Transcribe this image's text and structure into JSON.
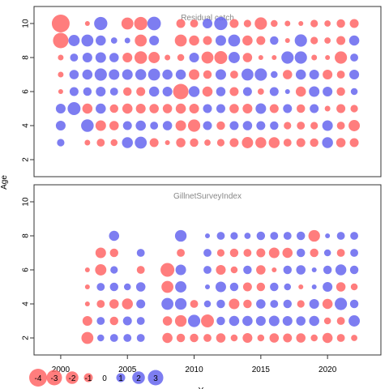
{
  "chart_data": [
    {
      "type": "bubble",
      "title": "Residual catch",
      "xlim": [
        1998,
        2024
      ],
      "ylim": [
        1,
        11
      ],
      "yticks": [
        2,
        4,
        6,
        8,
        10
      ],
      "positive_color": "#6666ee",
      "negative_color": "#ff6666",
      "x": [
        2000,
        2001,
        2002,
        2003,
        2004,
        2005,
        2006,
        2007,
        2008,
        2009,
        2010,
        2011,
        2012,
        2013,
        2014,
        2015,
        2016,
        2017,
        2018,
        2019,
        2020,
        2021,
        2022
      ],
      "ages": [
        3,
        4,
        5,
        6,
        7,
        8,
        9,
        10
      ],
      "residuals": {
        "10": [
          -4,
          0,
          -0.3,
          2.2,
          0,
          -1.8,
          -2.2,
          2.3,
          0,
          -1,
          -0.8,
          1.2,
          2.2,
          -1,
          -0.7,
          -1.9,
          -0.6,
          -0.4,
          -0.3,
          -0.7,
          -0.5,
          -0.9,
          -1
        ],
        "9": [
          -3,
          1.6,
          1.8,
          1.3,
          0.5,
          0.4,
          -1.8,
          1.2,
          0,
          -1.8,
          -1.3,
          -1,
          1.4,
          1.8,
          -1.3,
          -1,
          0.9,
          -0.3,
          1.9,
          -0.7,
          -0.5,
          -1,
          1.3
        ],
        "8": [
          -0.4,
          0.8,
          1.2,
          1.4,
          1.1,
          -1.2,
          -2,
          -1.6,
          -0.4,
          -0.6,
          1.2,
          -1.8,
          -2.1,
          1.6,
          -1.1,
          -0.3,
          -0.3,
          1.9,
          1.9,
          -0.4,
          -0.3,
          -1.9,
          0.8
        ],
        "7": [
          -0.4,
          1.1,
          1.3,
          1.9,
          1.4,
          1.4,
          1.5,
          1.8,
          1.3,
          1.3,
          -1.4,
          -0.9,
          1.4,
          -0.8,
          1.8,
          1.9,
          0.6,
          -1.1,
          1.3,
          1.2,
          -1.2,
          -0.8,
          1.2
        ],
        "6": [
          -0.3,
          1,
          0.9,
          1.2,
          0.8,
          -0.9,
          -1,
          1.3,
          1.2,
          -3,
          1.5,
          -1.3,
          1.1,
          -1,
          1,
          -0.5,
          1,
          0.3,
          -1.3,
          1.4,
          1.2,
          -0.9,
          0.6
        ],
        "5": [
          1.2,
          2.1,
          -1.3,
          1.3,
          -0.9,
          -1.3,
          -1.2,
          -1.1,
          -1.1,
          -1.3,
          -1.2,
          1,
          1,
          -1.1,
          -1.2,
          1.4,
          -1,
          1,
          -0.9,
          1,
          -0.4,
          -1,
          -0.7
        ],
        "4": [
          1.2,
          0,
          2,
          -1.4,
          -1.1,
          1,
          1.3,
          0.8,
          1.1,
          -1.4,
          -1.9,
          1,
          -0.9,
          1,
          1.1,
          1,
          0.9,
          -0.7,
          -0.8,
          -0.7,
          1.4,
          -0.8,
          -1.6
        ],
        "3": [
          0.7,
          0,
          -0.4,
          -0.8,
          -0.6,
          1.5,
          1.8,
          -1,
          -0.3,
          -1.1,
          -0.9,
          -0.5,
          -0.7,
          -1,
          -1.6,
          -1.5,
          -1.5,
          -0.8,
          -1,
          -0.9,
          1.5,
          -1.1,
          -1
        ]
      }
    },
    {
      "type": "bubble",
      "title": "GillnetSurveyIndex",
      "xlim": [
        1998,
        2024
      ],
      "ylim": [
        1,
        11
      ],
      "yticks": [
        2,
        4,
        6,
        8,
        10
      ],
      "positive_color": "#6666ee",
      "negative_color": "#ff6666",
      "x": [
        2002,
        2003,
        2004,
        2005,
        2006,
        2007,
        2008,
        2009,
        2010,
        2011,
        2012,
        2013,
        2014,
        2015,
        2016,
        2017,
        2018,
        2019,
        2020,
        2021,
        2022
      ],
      "ages": [
        2,
        3,
        4,
        5,
        6,
        7,
        8
      ],
      "residuals": {
        "8": [
          0,
          0,
          1.3,
          0,
          0,
          0,
          0,
          1.7,
          0,
          0.3,
          0.8,
          0.7,
          0.5,
          0.9,
          0.8,
          0.8,
          0.9,
          -1.7,
          0.3,
          0.8,
          0.8
        ],
        "7": [
          0,
          -1.4,
          -0.9,
          0,
          0.8,
          0,
          0,
          -0.8,
          0,
          0.8,
          -0.7,
          -0.9,
          -0.8,
          -1,
          -1.4,
          -1.3,
          0.9,
          -0.9,
          0.6,
          -0.8,
          0.8
        ],
        "6": [
          -0.3,
          -1.6,
          0.7,
          0,
          -0.8,
          0,
          -2.4,
          1.4,
          0,
          0.8,
          -1.2,
          -0.6,
          0.9,
          -1.1,
          -0.3,
          0.9,
          1.1,
          0.3,
          0.9,
          1.5,
          0.9
        ],
        "5": [
          -0.3,
          0.8,
          0.9,
          0.6,
          1.1,
          0,
          -1.8,
          1.6,
          0,
          0.3,
          1.4,
          0.9,
          -1,
          -0.9,
          0.9,
          0.6,
          -0.3,
          0.3,
          1.2,
          -1.1,
          -0.6
        ],
        "4": [
          -0.3,
          -0.8,
          -1.1,
          -1.5,
          1,
          0,
          1.8,
          1.7,
          -0.8,
          0.6,
          0.9,
          -1.4,
          -0.9,
          1.1,
          0.8,
          0.9,
          -0.7,
          1.2,
          -1.3,
          1.9,
          0.9
        ],
        "3": [
          -1.2,
          0.8,
          -0.9,
          1,
          0.8,
          0,
          -1.1,
          -1.7,
          1.9,
          -2.1,
          0.9,
          1.3,
          1.3,
          1.2,
          1.4,
          1.2,
          1.1,
          1.3,
          -0.6,
          -0.8,
          1.6
        ],
        "2": [
          -1.8,
          0.6,
          0.8,
          0.8,
          0.8,
          0,
          -1.3,
          -0.9,
          -0.9,
          -0.8,
          -1.1,
          -0.6,
          -1.2,
          -0.6,
          -1.1,
          -1,
          -1.1,
          -0.6,
          -1.3,
          -0.8,
          -0.5
        ]
      }
    }
  ],
  "axes": {
    "xticks": [
      2000,
      2005,
      2010,
      2015,
      2020
    ],
    "xlabel": "Y",
    "ylabel": "Age"
  },
  "legend": {
    "values": [
      -4,
      -3,
      -2,
      -1,
      0,
      1,
      2,
      3
    ],
    "labels": [
      "-4",
      "-3",
      "-2",
      "-1",
      "0",
      "1",
      "2",
      "3"
    ]
  }
}
